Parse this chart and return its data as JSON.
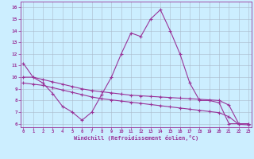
{
  "xlabel": "Windchill (Refroidissement éolien,°C)",
  "background_color": "#cceeff",
  "grid_color": "#aabbcc",
  "line_color": "#993399",
  "x_ticks": [
    0,
    1,
    2,
    3,
    4,
    5,
    6,
    7,
    8,
    9,
    10,
    11,
    12,
    13,
    14,
    15,
    16,
    17,
    18,
    19,
    20,
    21,
    22,
    23
  ],
  "y_ticks": [
    6,
    7,
    8,
    9,
    10,
    11,
    12,
    13,
    14,
    15,
    16
  ],
  "ylim": [
    5.7,
    16.5
  ],
  "xlim": [
    -0.3,
    23.3
  ],
  "line1_y": [
    11.2,
    10.0,
    9.5,
    8.6,
    7.5,
    7.0,
    6.3,
    7.0,
    8.5,
    10.0,
    12.0,
    13.8,
    13.5,
    15.0,
    15.8,
    14.0,
    12.0,
    9.5,
    8.0,
    8.0,
    7.8,
    6.0,
    6.0,
    6.0
  ],
  "line2_y": [
    10.0,
    10.0,
    9.8,
    9.6,
    9.4,
    9.2,
    9.0,
    8.85,
    8.75,
    8.65,
    8.55,
    8.45,
    8.4,
    8.35,
    8.3,
    8.25,
    8.2,
    8.15,
    8.1,
    8.05,
    8.0,
    7.6,
    6.0,
    6.0
  ],
  "line3_y": [
    9.5,
    9.4,
    9.3,
    9.1,
    8.9,
    8.7,
    8.5,
    8.3,
    8.15,
    8.05,
    7.95,
    7.85,
    7.75,
    7.65,
    7.55,
    7.45,
    7.35,
    7.25,
    7.15,
    7.05,
    6.95,
    6.6,
    5.95,
    5.9
  ]
}
